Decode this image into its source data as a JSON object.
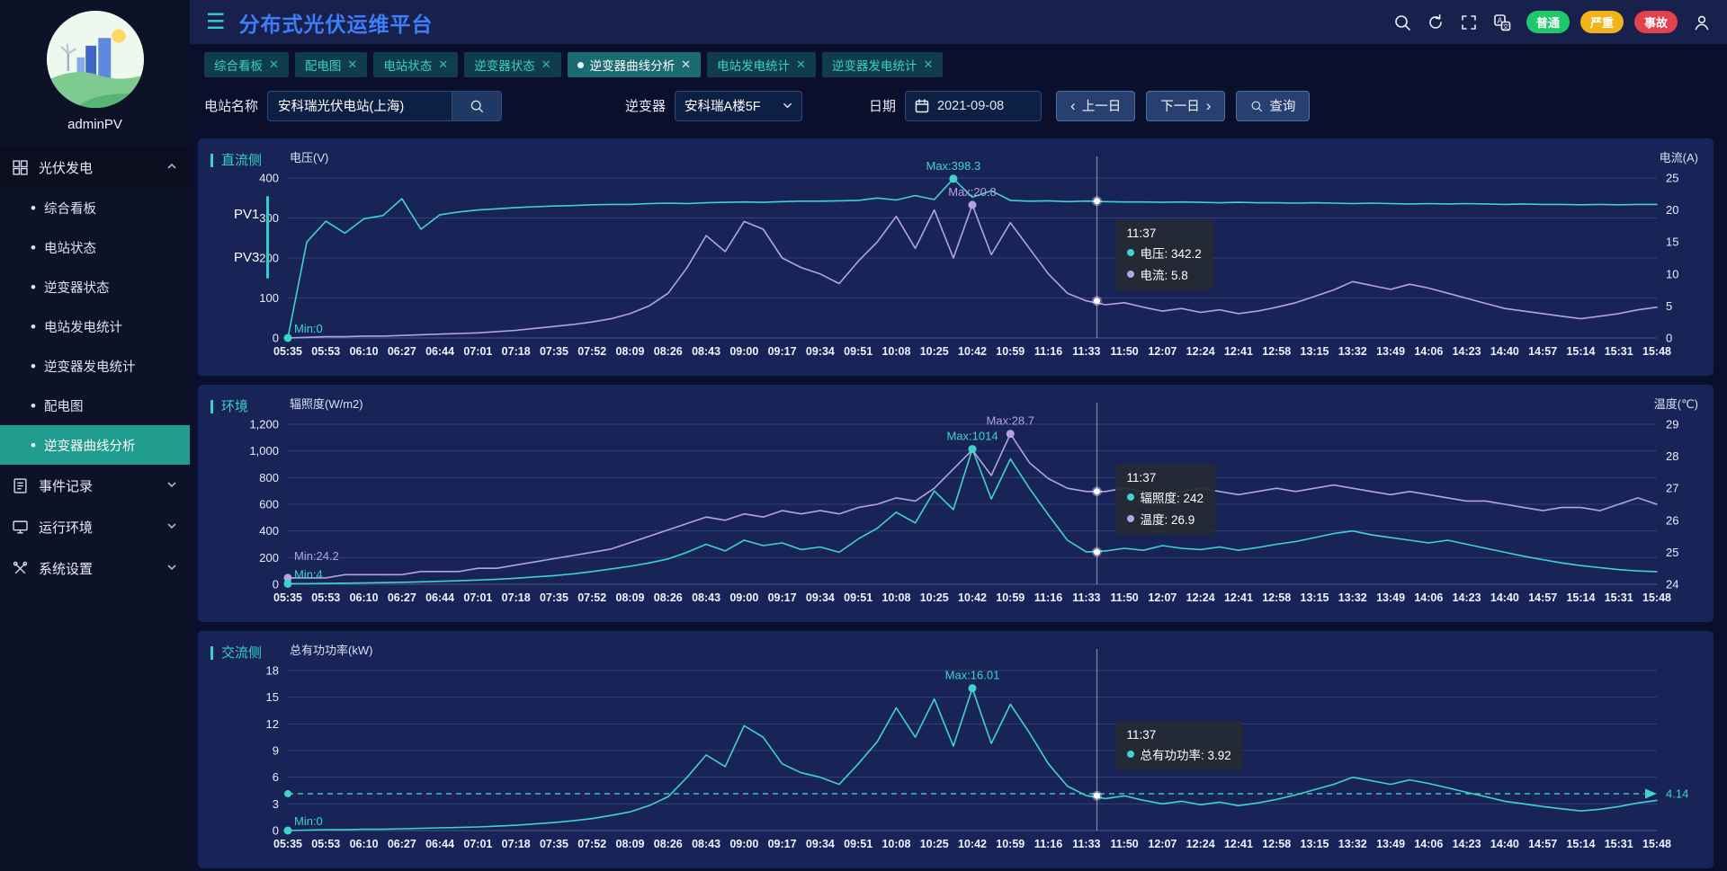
{
  "app": {
    "title": "分布式光伏运维平台"
  },
  "header": {
    "icons": [
      "search-icon",
      "refresh-icon",
      "fullscreen-icon",
      "translate-icon",
      "user-icon"
    ],
    "alarm_badges": [
      {
        "label": "普通",
        "color": "#1fc96b"
      },
      {
        "label": "严重",
        "color": "#f0b41a"
      },
      {
        "label": "事故",
        "color": "#e2414e"
      }
    ]
  },
  "sidebar": {
    "username": "adminPV",
    "menu": [
      {
        "label": "光伏发电",
        "icon": "grid",
        "expanded": true,
        "children": [
          "综合看板",
          "电站状态",
          "逆变器状态",
          "电站发电统计",
          "逆变器发电统计",
          "配电图",
          "逆变器曲线分析"
        ],
        "active_child": "逆变器曲线分析"
      },
      {
        "label": "事件记录",
        "icon": "doc",
        "expanded": false
      },
      {
        "label": "运行环境",
        "icon": "monitor",
        "expanded": false
      },
      {
        "label": "系统设置",
        "icon": "tools",
        "expanded": false
      }
    ]
  },
  "tabs": [
    {
      "label": "综合看板",
      "active": false
    },
    {
      "label": "配电图",
      "active": false
    },
    {
      "label": "电站状态",
      "active": false
    },
    {
      "label": "逆变器状态",
      "active": false
    },
    {
      "label": "逆变器曲线分析",
      "active": true
    },
    {
      "label": "电站发电统计",
      "active": false
    },
    {
      "label": "逆变器发电统计",
      "active": false
    }
  ],
  "filters": {
    "station_label": "电站名称",
    "station_value": "安科瑞光伏电站(上海)",
    "inverter_label": "逆变器",
    "inverter_value": "安科瑞A楼5F",
    "date_label": "日期",
    "date_value": "2021-09-08",
    "prev_label": "上一日",
    "next_label": "下一日",
    "query_label": "查询"
  },
  "chart_data": [
    {
      "type": "line",
      "panel_label": "直流侧",
      "pv_tabs": [
        {
          "label": "PV1",
          "active": true
        },
        {
          "label": "PV3",
          "active": false
        }
      ],
      "x_labels": [
        "05:35",
        "05:53",
        "06:10",
        "06:27",
        "06:44",
        "07:01",
        "07:18",
        "07:35",
        "07:52",
        "08:09",
        "08:26",
        "08:43",
        "09:00",
        "09:17",
        "09:34",
        "09:51",
        "10:08",
        "10:25",
        "10:42",
        "10:59",
        "11:16",
        "11:33",
        "11:50",
        "12:07",
        "12:24",
        "12:41",
        "12:58",
        "13:15",
        "13:32",
        "13:49",
        "14:06",
        "14:23",
        "14:40",
        "14:57",
        "15:14",
        "15:31",
        "15:48"
      ],
      "left_axis": {
        "title": "电压(V)",
        "min": 0,
        "max": 400,
        "tick_labels": [
          "0",
          "100",
          "200",
          "300",
          "400"
        ]
      },
      "right_axis": {
        "title": "电流(A)",
        "min": 0,
        "max": 25,
        "tick_labels": [
          "0",
          "5",
          "10",
          "15",
          "20",
          "25"
        ]
      },
      "series": [
        {
          "name": "电压",
          "axis": "left",
          "color": "#3fd4c8",
          "values": [
            0,
            240,
            292,
            262,
            298,
            306,
            348,
            272,
            308,
            315,
            320,
            323,
            326,
            328,
            330,
            331,
            333,
            334,
            334,
            336,
            337,
            336,
            338,
            339,
            340,
            339,
            341,
            342,
            342,
            343,
            344,
            350,
            345,
            356,
            346,
            398.3,
            352,
            368,
            344,
            342,
            343,
            341,
            342.2,
            341,
            340,
            340,
            339,
            340,
            339,
            338,
            339,
            338,
            338,
            337,
            338,
            337,
            336,
            337,
            336,
            335,
            336,
            335,
            336,
            335,
            334,
            335,
            334,
            334,
            333,
            334,
            333,
            334,
            334
          ]
        },
        {
          "name": "电流",
          "axis": "right",
          "color": "#b3a3e3",
          "values": [
            0,
            0.1,
            0.2,
            0.2,
            0.3,
            0.3,
            0.4,
            0.5,
            0.6,
            0.7,
            0.8,
            1,
            1.2,
            1.5,
            1.8,
            2.1,
            2.5,
            3,
            3.8,
            5,
            7,
            11,
            16,
            13.5,
            18.2,
            17,
            12.5,
            11,
            10,
            8.5,
            12,
            15,
            19,
            14,
            20,
            12.5,
            20.8,
            13,
            18,
            14,
            10,
            7,
            5.8,
            5.2,
            5.5,
            4.8,
            4.2,
            4.6,
            4,
            4.4,
            3.8,
            4.2,
            4.8,
            5.5,
            6.5,
            7.5,
            8.8,
            8.2,
            7.6,
            8.4,
            7.8,
            7,
            6.2,
            5.4,
            4.6,
            4.2,
            3.8,
            3.4,
            3,
            3.4,
            3.8,
            4.4,
            4.8
          ]
        }
      ],
      "annotations": [
        {
          "series": 0,
          "kind": "max",
          "text": "Max:398.3"
        },
        {
          "series": 1,
          "kind": "max",
          "text": "Max:20.8"
        },
        {
          "series": 0,
          "kind": "min",
          "text": "Min:0"
        }
      ],
      "crosshair": {
        "frac": 0.591,
        "time": "11:37",
        "rows": [
          {
            "label": "电压",
            "value": 342.2,
            "axis": "left",
            "color": "#3fd4c8"
          },
          {
            "label": "电流",
            "value": 5.8,
            "axis": "right",
            "color": "#b3a3e3"
          }
        ]
      }
    },
    {
      "type": "line",
      "panel_label": "环境",
      "x_labels": [
        "05:35",
        "05:53",
        "06:10",
        "06:27",
        "06:44",
        "07:01",
        "07:18",
        "07:35",
        "07:52",
        "08:09",
        "08:26",
        "08:43",
        "09:00",
        "09:17",
        "09:34",
        "09:51",
        "10:08",
        "10:25",
        "10:42",
        "10:59",
        "11:16",
        "11:33",
        "11:50",
        "12:07",
        "12:24",
        "12:41",
        "12:58",
        "13:15",
        "13:32",
        "13:49",
        "14:06",
        "14:23",
        "14:40",
        "14:57",
        "15:14",
        "15:31",
        "15:48"
      ],
      "left_axis": {
        "title": "辐照度(W/m2)",
        "min": 0,
        "max": 1200,
        "tick_labels": [
          "0",
          "200",
          "400",
          "600",
          "800",
          "1,000",
          "1,200"
        ]
      },
      "right_axis": {
        "title": "温度(℃)",
        "min": 24,
        "max": 29,
        "tick_labels": [
          "24",
          "25",
          "26",
          "27",
          "28",
          "29"
        ]
      },
      "series": [
        {
          "name": "辐照度",
          "axis": "left",
          "color": "#3fd4c8",
          "values": [
            4,
            5,
            6,
            8,
            10,
            12,
            15,
            18,
            22,
            26,
            32,
            38,
            45,
            55,
            65,
            78,
            95,
            115,
            135,
            160,
            190,
            240,
            300,
            250,
            330,
            290,
            310,
            260,
            280,
            240,
            340,
            420,
            540,
            460,
            700,
            560,
            1014,
            640,
            940,
            720,
            520,
            330,
            242,
            250,
            270,
            255,
            290,
            270,
            260,
            280,
            255,
            275,
            300,
            320,
            350,
            380,
            400,
            370,
            350,
            330,
            310,
            330,
            300,
            270,
            240,
            210,
            185,
            160,
            140,
            125,
            110,
            100,
            95
          ]
        },
        {
          "name": "温度",
          "axis": "right",
          "color": "#b3a3e3",
          "values": [
            24.2,
            24.2,
            24.2,
            24.3,
            24.3,
            24.3,
            24.3,
            24.4,
            24.4,
            24.4,
            24.5,
            24.5,
            24.6,
            24.7,
            24.8,
            24.9,
            25,
            25.1,
            25.3,
            25.5,
            25.7,
            25.9,
            26.1,
            26,
            26.2,
            26.1,
            26.3,
            26.2,
            26.3,
            26.2,
            26.4,
            26.5,
            26.7,
            26.6,
            27,
            27.6,
            28.2,
            27.4,
            28.7,
            27.8,
            27.3,
            27,
            26.9,
            26.9,
            27,
            26.9,
            26.8,
            26.9,
            27,
            26.9,
            26.8,
            26.9,
            27,
            26.9,
            27,
            27.1,
            27,
            26.9,
            26.8,
            26.9,
            26.8,
            26.7,
            26.6,
            26.6,
            26.5,
            26.4,
            26.3,
            26.4,
            26.4,
            26.3,
            26.5,
            26.7,
            26.5
          ]
        }
      ],
      "annotations": [
        {
          "series": 0,
          "kind": "max",
          "text": "Max:1014"
        },
        {
          "series": 1,
          "kind": "max",
          "text": "Max:28.7"
        },
        {
          "series": 1,
          "kind": "min",
          "text": "Min:24.2",
          "dy": -14
        },
        {
          "series": 0,
          "kind": "min",
          "text": "Min:4"
        }
      ],
      "crosshair": {
        "frac": 0.591,
        "time": "11:37",
        "rows": [
          {
            "label": "辐照度",
            "value": 242,
            "axis": "left",
            "color": "#3fd4c8"
          },
          {
            "label": "温度",
            "value": 26.9,
            "axis": "right",
            "color": "#b3a3e3"
          }
        ]
      }
    },
    {
      "type": "line",
      "panel_label": "交流侧",
      "x_labels": [
        "05:35",
        "05:53",
        "06:10",
        "06:27",
        "06:44",
        "07:01",
        "07:18",
        "07:35",
        "07:52",
        "08:09",
        "08:26",
        "08:43",
        "09:00",
        "09:17",
        "09:34",
        "09:51",
        "10:08",
        "10:25",
        "10:42",
        "10:59",
        "11:16",
        "11:33",
        "11:50",
        "12:07",
        "12:24",
        "12:41",
        "12:58",
        "13:15",
        "13:32",
        "13:49",
        "14:06",
        "14:23",
        "14:40",
        "14:57",
        "15:14",
        "15:31",
        "15:48"
      ],
      "left_axis": {
        "title": "总有功功率(kW)",
        "min": 0,
        "max": 18,
        "tick_labels": [
          "0",
          "3",
          "6",
          "9",
          "12",
          "15",
          "18"
        ]
      },
      "series": [
        {
          "name": "总有功功率",
          "axis": "left",
          "color": "#3fd4c8",
          "values": [
            0,
            0.05,
            0.1,
            0.1,
            0.15,
            0.15,
            0.2,
            0.25,
            0.3,
            0.35,
            0.4,
            0.5,
            0.6,
            0.75,
            0.9,
            1.1,
            1.35,
            1.7,
            2.1,
            2.8,
            3.8,
            6,
            8.5,
            7.2,
            11.8,
            10.5,
            7.5,
            6.5,
            6,
            5.2,
            7.5,
            10,
            13.8,
            10.5,
            14.8,
            9.5,
            16.01,
            9.8,
            14.2,
            11,
            7.5,
            5,
            3.92,
            3.6,
            3.9,
            3.4,
            3,
            3.3,
            2.9,
            3.2,
            2.8,
            3.1,
            3.5,
            4,
            4.6,
            5.2,
            6,
            5.6,
            5.2,
            5.7,
            5.3,
            4.8,
            4.3,
            3.8,
            3.3,
            3,
            2.7,
            2.45,
            2.2,
            2.4,
            2.7,
            3.1,
            3.4
          ]
        }
      ],
      "markline": {
        "value": 4.14,
        "label": "4.14",
        "color": "#3fd4c8"
      },
      "annotations": [
        {
          "series": 0,
          "kind": "max",
          "text": "Max:16.01"
        },
        {
          "series": 0,
          "kind": "min",
          "text": "Min:0"
        }
      ],
      "crosshair": {
        "frac": 0.591,
        "time": "11:37",
        "rows": [
          {
            "label": "总有功功率",
            "value": 3.92,
            "axis": "left",
            "color": "#3fd4c8"
          }
        ]
      }
    }
  ]
}
